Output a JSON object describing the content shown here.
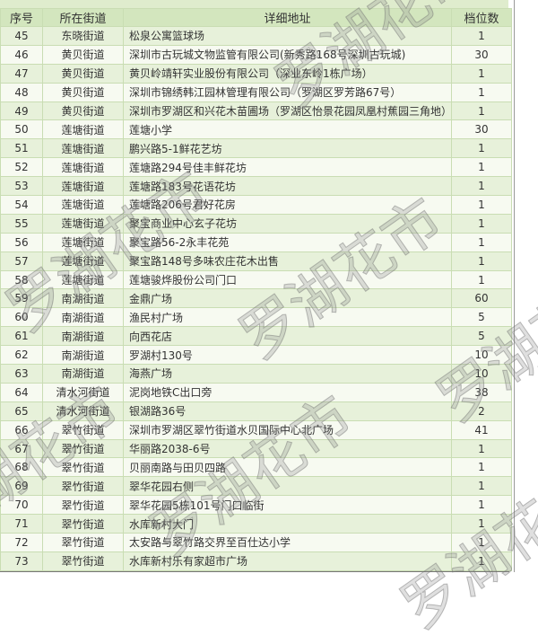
{
  "watermark": "罗湖花市",
  "headers": [
    "序号",
    "所在街道",
    "详细地址",
    "档位数"
  ],
  "rows": [
    [
      "45",
      "东晓街道",
      "松泉公寓篮球场",
      "1"
    ],
    [
      "46",
      "黄贝街道",
      "深圳市古玩城文物监管有限公司(新秀路168号深圳古玩城)",
      "30"
    ],
    [
      "47",
      "黄贝街道",
      "黄贝岭靖轩实业股份有限公司（深业东岭1栋广场）",
      "1"
    ],
    [
      "48",
      "黄贝街道",
      "深圳市锦绣韩江园林管理有限公司（罗湖区罗芳路67号）",
      "1"
    ],
    [
      "49",
      "黄贝街道",
      "深圳市罗湖区和兴花木苗圃场（罗湖区怡景花园凤凰村蕉园三角地）",
      "1"
    ],
    [
      "50",
      "莲塘街道",
      "莲塘小学",
      "30"
    ],
    [
      "51",
      "莲塘街道",
      "鹏兴路5-1鲜花艺坊",
      "1"
    ],
    [
      "52",
      "莲塘街道",
      "莲塘路294号佳丰鲜花坊",
      "1"
    ],
    [
      "53",
      "莲塘街道",
      "莲塘路183号花语花坊",
      "1"
    ],
    [
      "54",
      "莲塘街道",
      "莲塘路206号君好花房",
      "1"
    ],
    [
      "55",
      "莲塘街道",
      "聚宝商业中心玄子花坊",
      "1"
    ],
    [
      "56",
      "莲塘街道",
      "聚宝路56-2永丰花苑",
      "1"
    ],
    [
      "57",
      "莲塘街道",
      "聚宝路148号多味农庄花木出售",
      "1"
    ],
    [
      "58",
      "莲塘街道",
      "莲塘骏烨股份公司门口",
      "1"
    ],
    [
      "59",
      "南湖街道",
      "金鼎广场",
      "60"
    ],
    [
      "60",
      "南湖街道",
      "渔民村广场",
      "5"
    ],
    [
      "61",
      "南湖街道",
      "向西花店",
      "5"
    ],
    [
      "62",
      "南湖街道",
      "罗湖村130号",
      "10"
    ],
    [
      "63",
      "南湖街道",
      "海燕广场",
      "10"
    ],
    [
      "64",
      "清水河街道",
      "泥岗地铁C出口旁",
      "38"
    ],
    [
      "65",
      "清水河街道",
      "银湖路36号",
      "2"
    ],
    [
      "66",
      "翠竹街道",
      "深圳市罗湖区翠竹街道水贝国际中心北广场",
      "41"
    ],
    [
      "67",
      "翠竹街道",
      "华丽路2038-6号",
      "1"
    ],
    [
      "68",
      "翠竹街道",
      "贝丽南路与田贝四路",
      "1"
    ],
    [
      "69",
      "翠竹街道",
      "翠华花园右侧",
      "1"
    ],
    [
      "70",
      "翠竹街道",
      "翠华花园5栋101号门口临街",
      "1"
    ],
    [
      "71",
      "翠竹街道",
      "水库新村大门",
      "1"
    ],
    [
      "72",
      "翠竹街道",
      "太安路与翠竹路交界至百仕达小学",
      "1"
    ],
    [
      "73",
      "翠竹街道",
      "水库新村乐有家超市广场",
      "1"
    ]
  ]
}
